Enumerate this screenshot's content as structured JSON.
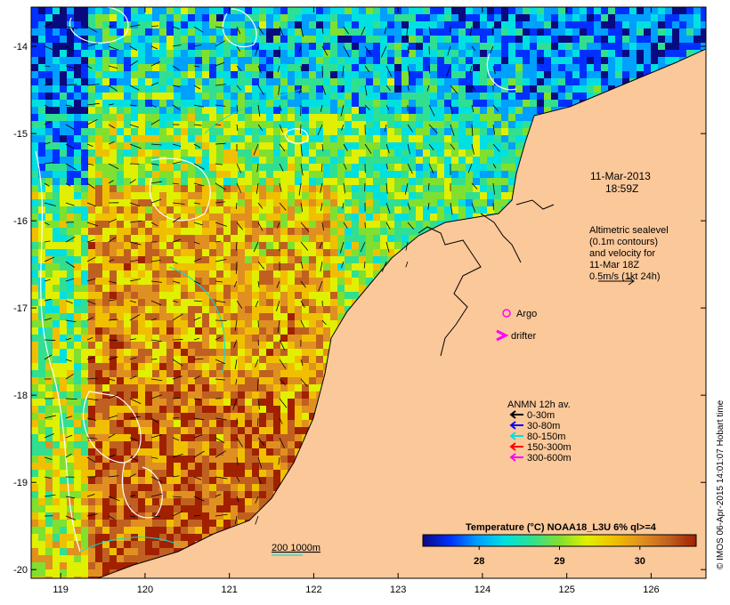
{
  "date": {
    "line1": "11-Mar-2013",
    "line2": "18:59Z"
  },
  "altimetry": {
    "lines": [
      "Altimetric sealevel",
      "(0.1m contours)",
      "and velocity for",
      "11-Mar 18Z",
      "0.5m/s (1kt 24h)"
    ]
  },
  "markers": {
    "argo": "Argo",
    "drifter": "drifter"
  },
  "anmn": {
    "title": "ANMN 12h av.",
    "items": [
      {
        "label": "0-30m",
        "color": "#000000"
      },
      {
        "label": "30-80m",
        "color": "#0000ff"
      },
      {
        "label": "80-150m",
        "color": "#00e0e0"
      },
      {
        "label": "150-300m",
        "color": "#ff0000"
      },
      {
        "label": "300-600m",
        "color": "#ff00ff"
      }
    ]
  },
  "colorbar": {
    "title": "Temperature (°C) NOAA18_L3U 6% ql>=4",
    "ticks": [
      28,
      29,
      30
    ],
    "range": [
      27.3,
      30.7
    ],
    "colors": [
      "#0a0a80",
      "#0030ff",
      "#00a0ff",
      "#00e0e0",
      "#30e090",
      "#80e030",
      "#e0f000",
      "#f0c000",
      "#e09020",
      "#c06020",
      "#a02000"
    ]
  },
  "scale_label": "200  1000m",
  "credit": "© IMOS 06-Apr-2015 14:01:07 Hobart time",
  "axes": {
    "lon_ticks": [
      119,
      120,
      121,
      122,
      123,
      124,
      125,
      126
    ],
    "lat_ticks": [
      -14,
      -15,
      -16,
      -17,
      -18,
      -19,
      -20
    ],
    "lon_range": [
      118.65,
      126.65
    ],
    "lat_range": [
      -20.1,
      -13.55
    ]
  },
  "colors": {
    "land": "#fbc89a",
    "frame": "#000000"
  }
}
